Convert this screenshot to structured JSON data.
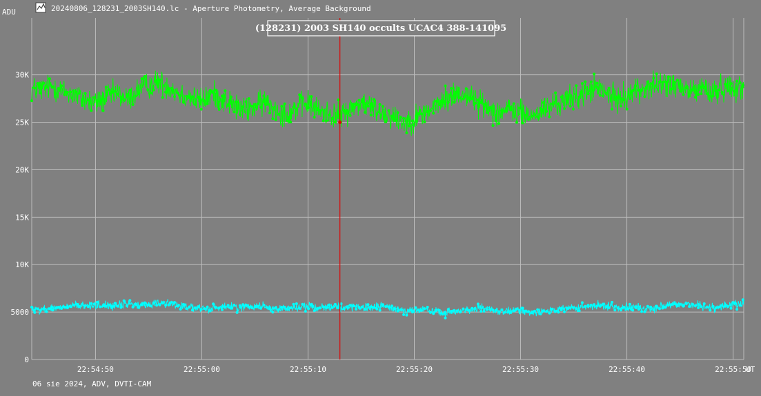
{
  "window": {
    "title": "20240806_128231_2003SH140.lc - Aperture Photometry, Average Background",
    "icon": "light-curve-icon"
  },
  "footer": {
    "text": "06 sie 2024, ADV, DVTI-CAM"
  },
  "colors": {
    "background": "#808080",
    "grid": "#bdbdbd",
    "target": "#00ff00",
    "comparison": "#00ffff",
    "event_line": "#e00000"
  },
  "chart_data": {
    "type": "line",
    "title": "(128231) 2003 SH140 occults UCAC4 388-141095",
    "ylabel": "ADU",
    "xlabel": "UT",
    "ylim": [
      0,
      36000
    ],
    "xlim": [
      "22:54:44",
      "22:55:51"
    ],
    "grid": true,
    "y_ticks": [
      {
        "value": 0,
        "label": "0"
      },
      {
        "value": 5000,
        "label": "5000"
      },
      {
        "value": 10000,
        "label": "10K"
      },
      {
        "value": 15000,
        "label": "15K"
      },
      {
        "value": 20000,
        "label": "20K"
      },
      {
        "value": 25000,
        "label": "25K"
      },
      {
        "value": 30000,
        "label": "30K"
      }
    ],
    "x_ticks": [
      "22:54:50",
      "22:55:00",
      "22:55:10",
      "22:55:20",
      "22:55:30",
      "22:55:40",
      "22:55:50"
    ],
    "event_marker": {
      "time": "22:55:13",
      "value": 25000
    },
    "series": [
      {
        "x": [
          "22:54:45",
          "22:54:46",
          "22:54:47",
          "22:54:48",
          "22:54:49",
          "22:54:50",
          "22:54:51",
          "22:54:52",
          "22:54:53",
          "22:54:54",
          "22:54:55",
          "22:54:56",
          "22:54:57",
          "22:54:58",
          "22:54:59",
          "22:55:00",
          "22:55:01",
          "22:55:02",
          "22:55:03",
          "22:55:04",
          "22:55:05",
          "22:55:06",
          "22:55:07",
          "22:55:08",
          "22:55:09",
          "22:55:10",
          "22:55:11",
          "22:55:12",
          "22:55:13",
          "22:55:14",
          "22:55:15",
          "22:55:16",
          "22:55:17",
          "22:55:18",
          "22:55:19",
          "22:55:20",
          "22:55:21",
          "22:55:22",
          "22:55:23",
          "22:55:24",
          "22:55:25",
          "22:55:26",
          "22:55:27",
          "22:55:28",
          "22:55:29",
          "22:55:30",
          "22:55:31",
          "22:55:32",
          "22:55:33",
          "22:55:34",
          "22:55:35",
          "22:55:36",
          "22:55:37",
          "22:55:38",
          "22:55:39",
          "22:55:40",
          "22:55:41",
          "22:55:42",
          "22:55:43",
          "22:55:44",
          "22:55:45",
          "22:55:46",
          "22:55:47",
          "22:55:48",
          "22:55:49",
          "22:55:50",
          "22:55:51"
        ],
        "values": [
          28500,
          28800,
          28200,
          27900,
          27400,
          27000,
          27600,
          28100,
          27300,
          28400,
          28900,
          29200,
          28700,
          28000,
          27600,
          27200,
          28000,
          27400,
          26800,
          26200,
          26600,
          27200,
          26400,
          25800,
          26600,
          27000,
          26200,
          25900,
          25700,
          26400,
          27100,
          26600,
          26000,
          25600,
          25000,
          25400,
          26000,
          26700,
          27400,
          28100,
          27900,
          27100,
          26500,
          26100,
          26300,
          26000,
          25600,
          26200,
          26800,
          27200,
          27600,
          28000,
          28700,
          28100,
          27400,
          27900,
          28400,
          28700,
          28900,
          29100,
          28600,
          28300,
          28700,
          28100,
          28600,
          28900,
          28400
        ],
        "noise": 2000
      },
      {
        "x": [
          "22:54:45",
          "22:54:46",
          "22:54:47",
          "22:54:48",
          "22:54:49",
          "22:54:50",
          "22:54:51",
          "22:54:52",
          "22:54:53",
          "22:54:54",
          "22:54:55",
          "22:54:56",
          "22:54:57",
          "22:54:58",
          "22:54:59",
          "22:55:00",
          "22:55:01",
          "22:55:02",
          "22:55:03",
          "22:55:04",
          "22:55:05",
          "22:55:06",
          "22:55:07",
          "22:55:08",
          "22:55:09",
          "22:55:10",
          "22:55:11",
          "22:55:12",
          "22:55:13",
          "22:55:14",
          "22:55:15",
          "22:55:16",
          "22:55:17",
          "22:55:18",
          "22:55:19",
          "22:55:20",
          "22:55:21",
          "22:55:22",
          "22:55:23",
          "22:55:24",
          "22:55:25",
          "22:55:26",
          "22:55:27",
          "22:55:28",
          "22:55:29",
          "22:55:30",
          "22:55:31",
          "22:55:32",
          "22:55:33",
          "22:55:34",
          "22:55:35",
          "22:55:36",
          "22:55:37",
          "22:55:38",
          "22:55:39",
          "22:55:40",
          "22:55:41",
          "22:55:42",
          "22:55:43",
          "22:55:44",
          "22:55:45",
          "22:55:46",
          "22:55:47",
          "22:55:48",
          "22:55:49",
          "22:55:50",
          "22:55:51"
        ],
        "values": [
          5300,
          5400,
          5500,
          5700,
          5600,
          5800,
          5700,
          5600,
          5900,
          5700,
          5800,
          6000,
          5900,
          5700,
          5500,
          5300,
          5400,
          5600,
          5500,
          5500,
          5700,
          5600,
          5300,
          5400,
          5500,
          5600,
          5500,
          5600,
          5500,
          5500,
          5400,
          5500,
          5600,
          5400,
          5200,
          5100,
          5300,
          5000,
          4900,
          5100,
          5200,
          5400,
          5300,
          5000,
          5100,
          5200,
          5000,
          5100,
          5200,
          5300,
          5400,
          5500,
          5600,
          5700,
          5500,
          5600,
          5500,
          5300,
          5500,
          5700,
          5800,
          5900,
          5600,
          5500,
          5600,
          5800,
          5900
        ],
        "noise": 650
      }
    ]
  }
}
